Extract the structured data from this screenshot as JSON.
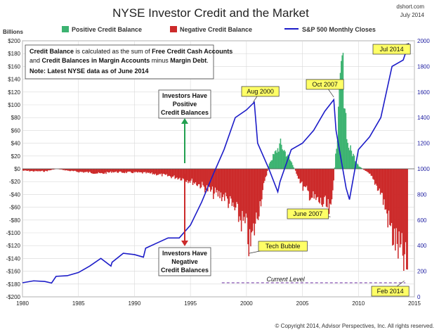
{
  "chart_data": {
    "type": "bar",
    "title": "NYSE Investor Credit and the Market",
    "source": "dshort.com",
    "date": "July 2014",
    "ylabel_left": "Billions",
    "copyright": "© Copyright 2014, Advisor Perspectives, Inc. All rights reserved.",
    "xlim": [
      1980,
      2015
    ],
    "x_ticks": [
      "1980",
      "1985",
      "1990",
      "1995",
      "2000",
      "2005",
      "2010",
      "2015"
    ],
    "ylim_left": [
      -200,
      200
    ],
    "y_ticks_left": [
      "$200",
      "$180",
      "$160",
      "$140",
      "$120",
      "$100",
      "$80",
      "$60",
      "$40",
      "$20",
      "$0",
      "-$20",
      "-$40",
      "-$60",
      "-$80",
      "-$100",
      "-$120",
      "-$140",
      "-$160",
      "-$180",
      "-$200"
    ],
    "ylim_right": [
      0,
      2000
    ],
    "y_ticks_right": [
      "2000",
      "1800",
      "1600",
      "1400",
      "1200",
      "1000",
      "800",
      "600",
      "400",
      "200",
      "0"
    ],
    "grid": true,
    "colors": {
      "positive": "#3cb371",
      "negative": "#cc2a2a",
      "sp500": "#1c1cc8"
    },
    "legend": [
      {
        "name": "Positive Credit Balance",
        "color": "#3cb371"
      },
      {
        "name": "Negative Credit Balance",
        "color": "#cc2a2a"
      },
      {
        "name": "S&P 500 Monthly Closes",
        "color": "#1c1cc8"
      }
    ],
    "credit_balance": {
      "x": [
        1980,
        1981,
        1982,
        1983,
        1984,
        1985,
        1986,
        1987,
        1988,
        1989,
        1990,
        1991,
        1992,
        1993,
        1994,
        1995,
        1996,
        1997,
        1998,
        1999,
        2000,
        2000.25,
        2001,
        2002,
        2003,
        2004,
        2005,
        2006,
        2007,
        2007.5,
        2008,
        2008.5,
        2009,
        2010,
        2011,
        2012,
        2013,
        2014,
        2014.4
      ],
      "y": [
        -3,
        -4,
        -4,
        0,
        -3,
        -5,
        -6,
        -8,
        -5,
        -6,
        -6,
        -7,
        -9,
        -12,
        -15,
        -20,
        -28,
        -40,
        -45,
        -70,
        -100,
        -132,
        -70,
        10,
        40,
        10,
        -30,
        -50,
        -60,
        -75,
        40,
        180,
        40,
        5,
        -10,
        -40,
        -110,
        -150,
        -175
      ]
    },
    "sp500": {
      "x": [
        1980,
        1981,
        1982,
        1982.6,
        1983,
        1984,
        1985,
        1986,
        1987,
        1987.9,
        1988,
        1989,
        1990,
        1990.8,
        1991,
        1992,
        1993,
        1994,
        1995,
        1996,
        1997,
        1998,
        1999,
        2000,
        2000.7,
        2001,
        2002,
        2002.8,
        2003,
        2004,
        2005,
        2006,
        2007,
        2007.8,
        2008,
        2008.9,
        2009.2,
        2010,
        2011,
        2012,
        2013,
        2014,
        2014.5
      ],
      "y": [
        110,
        125,
        120,
        108,
        160,
        165,
        190,
        240,
        300,
        240,
        270,
        340,
        330,
        310,
        380,
        420,
        460,
        460,
        560,
        740,
        950,
        1150,
        1400,
        1460,
        1520,
        1200,
        1000,
        820,
        900,
        1150,
        1200,
        1300,
        1450,
        1540,
        1300,
        850,
        760,
        1150,
        1250,
        1400,
        1800,
        1850,
        1980
      ]
    },
    "annotations": [
      {
        "text": "Aug 2000",
        "x": 2000.6,
        "y_right": 1520
      },
      {
        "text": "Oct 2007",
        "x": 2007.8,
        "y_right": 1560
      },
      {
        "text": "Jul 2014",
        "x": 2014.5,
        "y_right": 1980
      },
      {
        "text": "June 2007",
        "x": 2007.5,
        "y_left": -75
      },
      {
        "text": "Tech Bubble",
        "x": 2000.25,
        "y_left": -132
      },
      {
        "text": "Feb 2014",
        "x": 2014.1,
        "y_left": -175
      },
      {
        "text": "Current Level",
        "y_left": -178
      }
    ],
    "note_box": {
      "line1_bold": "Credit Balance",
      "line1_rest": " is calculated as the sum of ",
      "line1_bold2": "Free Credit Cash Accounts",
      "line2_pre": "and ",
      "line2_bold": "Credit Balances in Margin Accounts",
      "line2_mid": " minus ",
      "line2_bold2": "Margin Debt",
      "line2_end": ".",
      "note": "Note: Latest NYSE data as of June 2014"
    },
    "positive_box": [
      "Investors Have",
      "Positive",
      "Credit Balances"
    ],
    "negative_box": [
      "Investors Have",
      "Negative",
      "Credit Balances"
    ]
  }
}
